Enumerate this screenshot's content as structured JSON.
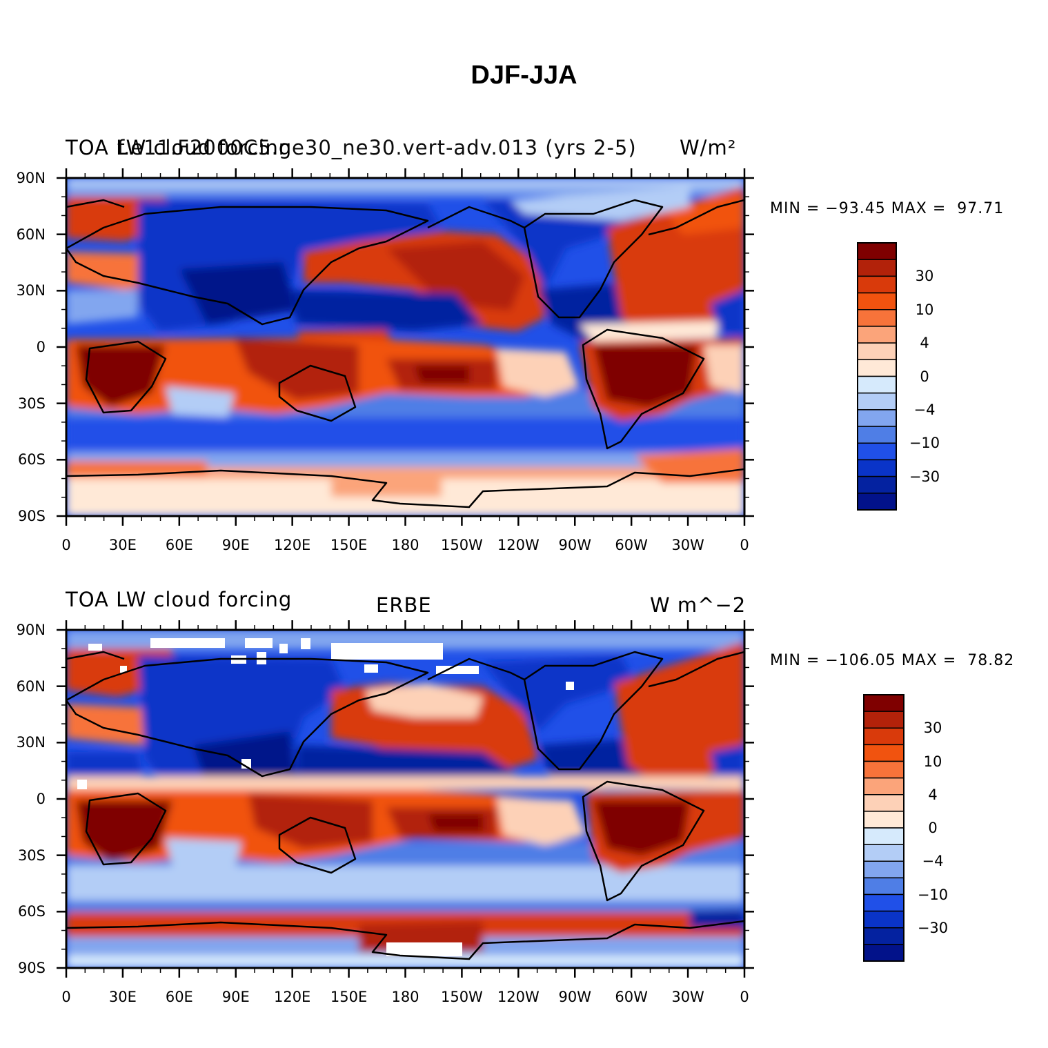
{
  "title": "DJF-JJA",
  "panels": [
    {
      "left_title_a": "TOA LW cloud forcing",
      "left_title_b": "f.e11.F2000C5.ne30_ne30.vert-adv.013 (yrs 2-5)",
      "units": "W/m²",
      "min_max": "MIN = −93.45 MAX =  97.71"
    },
    {
      "left_title": "TOA LW cloud forcing",
      "center_title": "ERBE",
      "units": "W m^−2",
      "min_max": "MIN = −106.05 MAX =  78.82"
    }
  ],
  "axes": {
    "lat_labels": [
      "90N",
      "60N",
      "30N",
      "0",
      "30S",
      "60S",
      "90S"
    ],
    "lon_labels": [
      "0",
      "30E",
      "60E",
      "90E",
      "120E",
      "150E",
      "180",
      "150W",
      "120W",
      "90W",
      "60W",
      "30W",
      "0"
    ]
  },
  "colorbar": {
    "labels": [
      "30",
      "10",
      "4",
      "0",
      "−4",
      "−10",
      "−30"
    ],
    "colors": [
      "#7f0000",
      "#b2220a",
      "#d93a0b",
      "#f1530f",
      "#f7733a",
      "#fba47a",
      "#fdd1b7",
      "#ffe9d7",
      "#d6eafc",
      "#b3cdf6",
      "#82a6ef",
      "#4f7ee6",
      "#2050e8",
      "#0a34c8",
      "#0422a0",
      "#02128a"
    ]
  },
  "map_colors": {
    "ocean_base": "#f1530f"
  }
}
